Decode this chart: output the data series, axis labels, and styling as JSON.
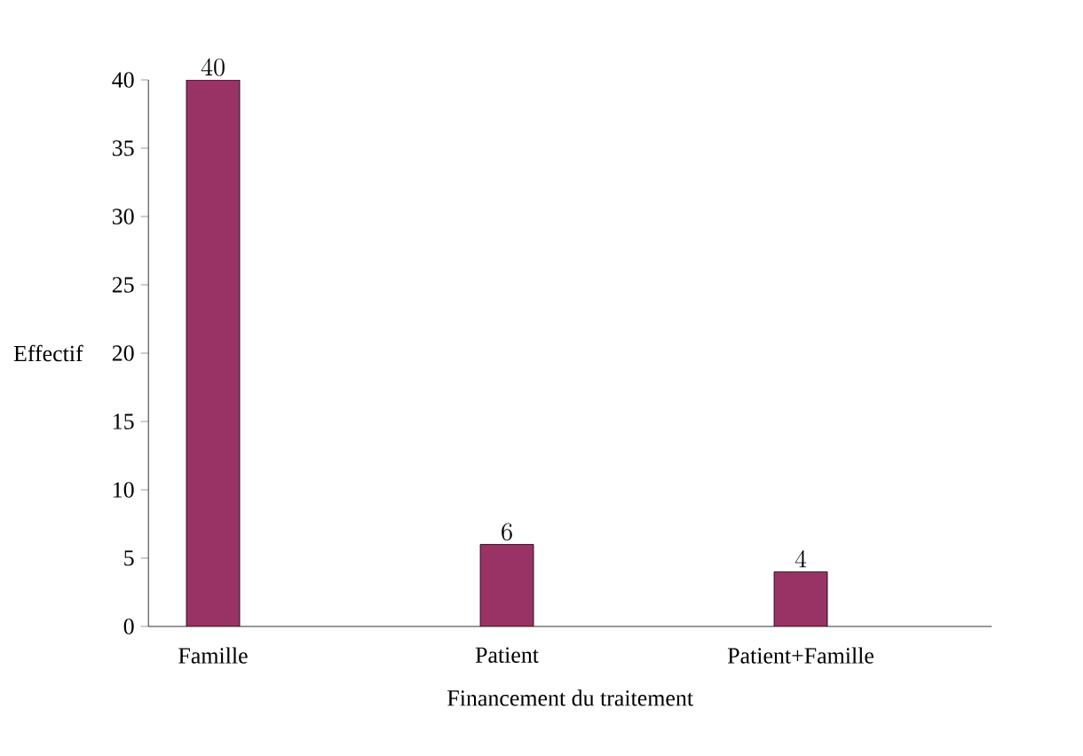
{
  "chart_data": {
    "type": "bar",
    "xlabel": "Financement du traitement",
    "ylabel": "Effectif",
    "categories": [
      "Famille",
      "Patient",
      "Patient+Famille"
    ],
    "values": [
      40,
      6,
      4
    ],
    "color": "#993366",
    "ylim": [
      0,
      40
    ],
    "yticks": [
      0,
      5,
      10,
      15,
      20,
      25,
      30,
      35,
      40
    ],
    "data_labels": true
  }
}
